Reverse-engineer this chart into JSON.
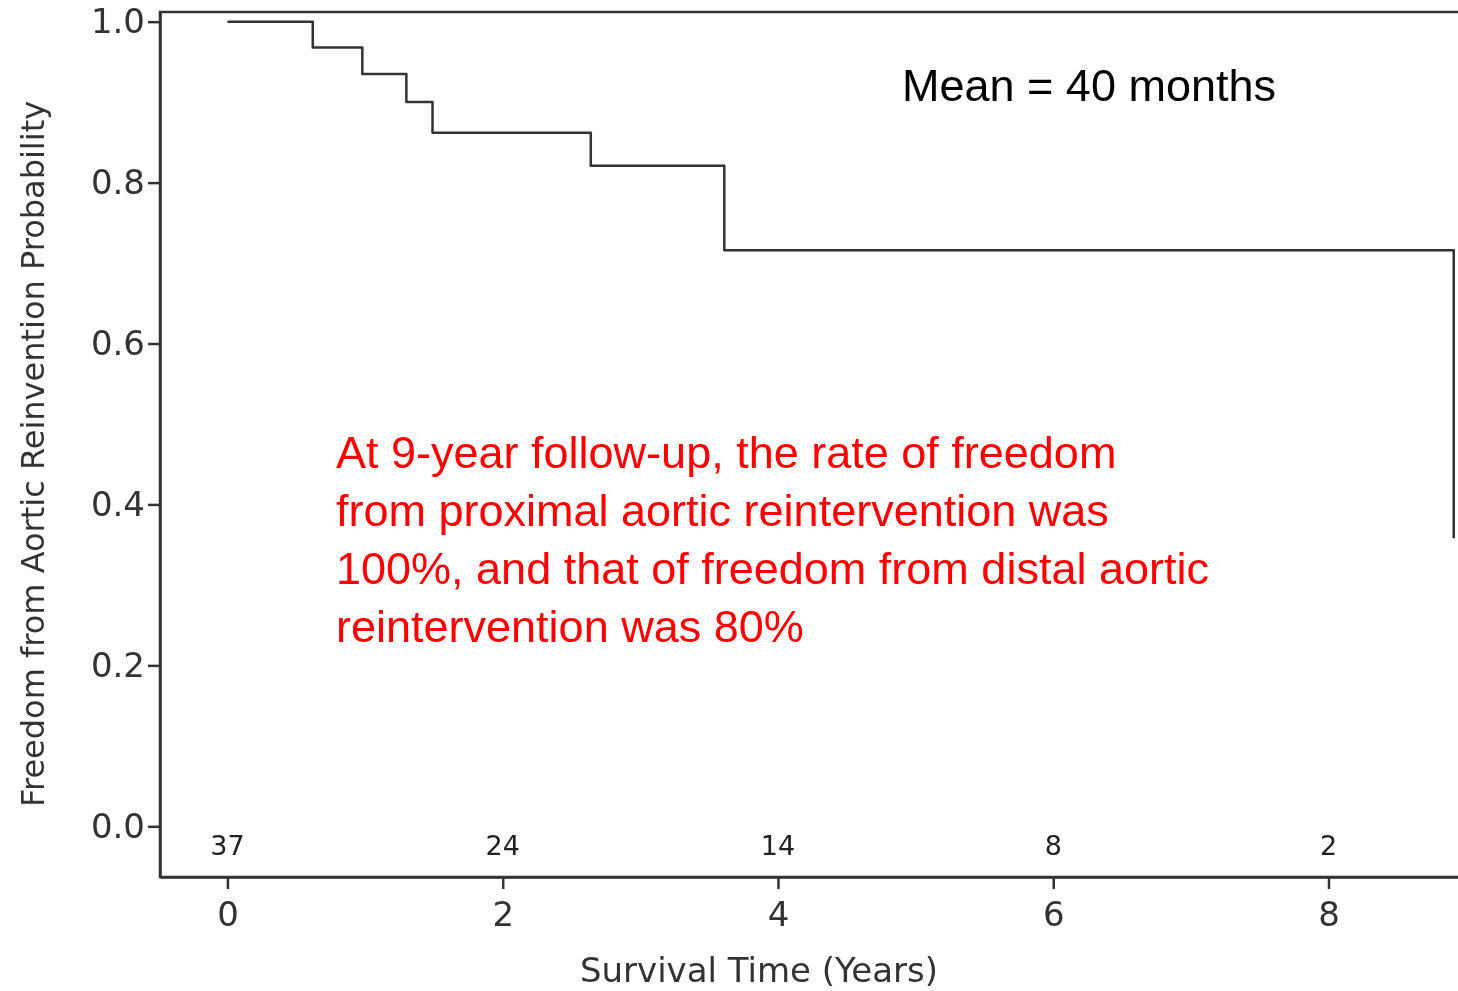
{
  "chart_data": {
    "type": "step",
    "xlabel": "Survival Time (Years)",
    "ylabel": "Freedom from Aortic Reinvention Probability",
    "x": [
      0,
      0.62,
      0.98,
      1.3,
      1.49,
      2.64,
      3.61,
      8.91
    ],
    "series": [
      {
        "color": "#333333",
        "values": [
          1.0,
          0.968,
          0.935,
          0.9,
          0.862,
          0.821,
          0.716,
          0.358
        ]
      }
    ],
    "xlim": [
      -0.49,
      8.97
    ],
    "ylim": [
      -0.063,
      1.012
    ],
    "xticks": [
      0,
      2,
      4,
      6,
      8
    ],
    "yticks": [
      {
        "value": 0,
        "label": "0.0"
      },
      {
        "value": 0.2,
        "label": "0.2"
      },
      {
        "value": 0.4,
        "label": "0.4"
      },
      {
        "value": 0.6,
        "label": "0.6"
      },
      {
        "value": 0.8,
        "label": "0.8"
      },
      {
        "value": 1,
        "label": "1.0"
      }
    ],
    "grid": false,
    "marker": "none",
    "line_style": "solid",
    "annotations": [
      "37",
      "24",
      "14",
      "8",
      "2",
      "Mean = 40 months",
      "At 9-year follow-up, the rate of freedom from proximal aortic reintervention was 100%, and that of freedom from distal aortic reintervention was 80%"
    ]
  }
}
